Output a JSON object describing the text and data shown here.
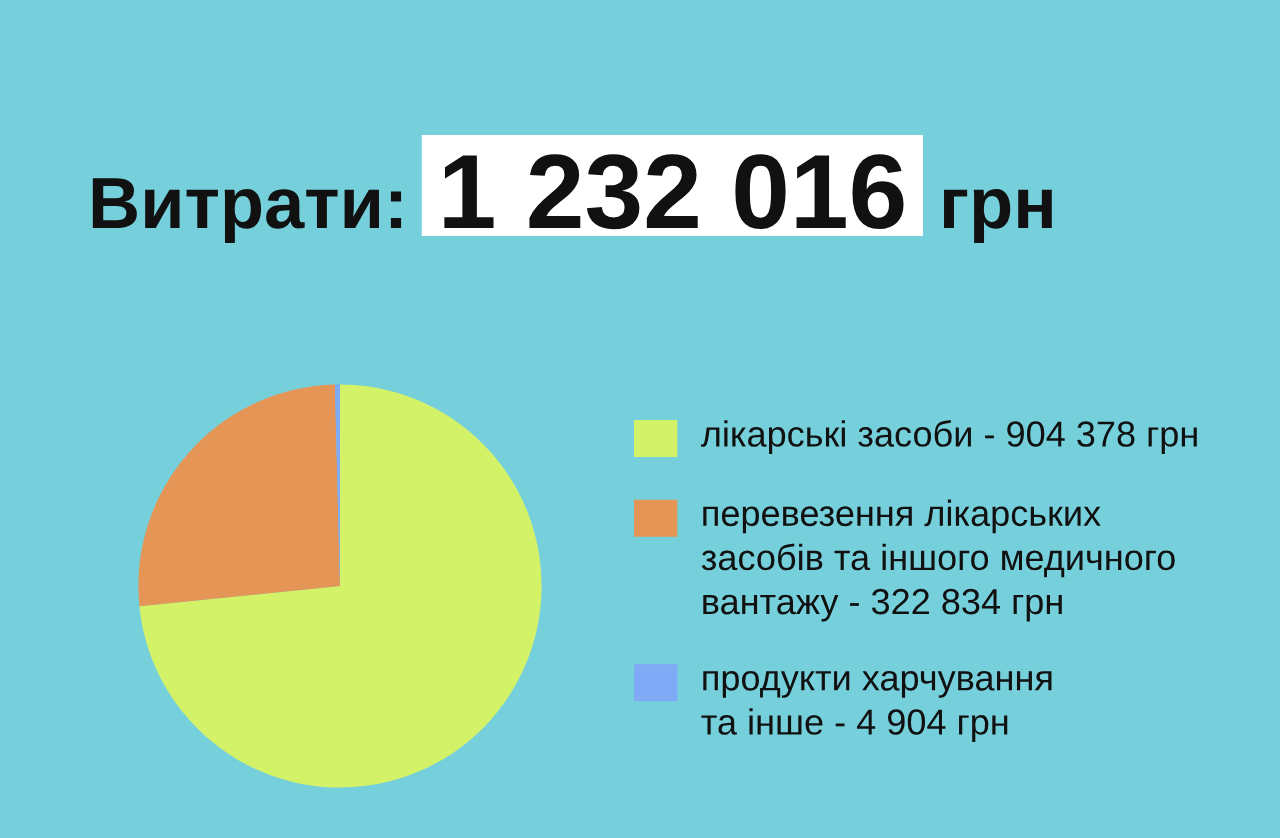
{
  "chart_data": {
    "type": "pie",
    "title": "Витрати: 1 232 016 грн",
    "categories": [
      "лікарські засоби - 904 378 грн",
      "перевезення лікарських\nзасобів та іншого медичного\nвантажу - 322 834 грн",
      "продукти харчування\nта інше - 4 904 грн"
    ],
    "values": [
      73.4,
      26.2,
      0.4
    ],
    "colors": [
      "#d4f268",
      "#e59555",
      "#80aaf5"
    ],
    "legend": "right"
  }
}
